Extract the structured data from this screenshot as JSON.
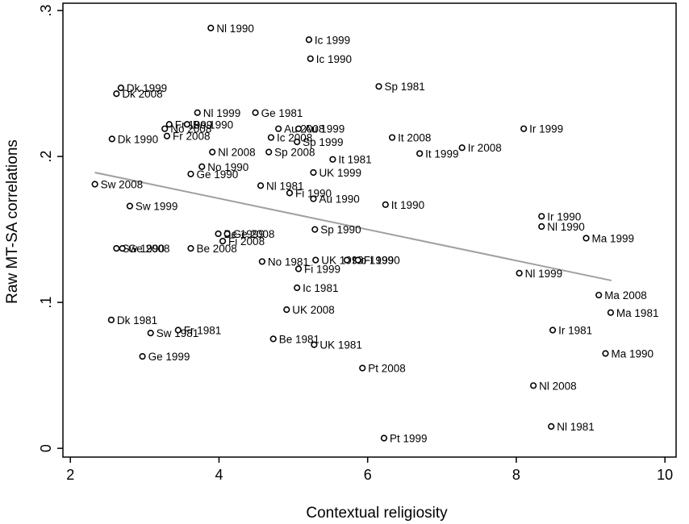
{
  "chart_data": {
    "type": "scatter",
    "xlabel": "Contextual religiosity",
    "ylabel": "Raw MT-SA correlations",
    "xlim": [
      1.9,
      10.15
    ],
    "ylim": [
      -0.006,
      0.305
    ],
    "xticks": [
      2,
      4,
      6,
      8,
      10
    ],
    "xtick_labels": [
      "2",
      "4",
      "6",
      "8",
      "10"
    ],
    "yticks": [
      0,
      0.1,
      0.2,
      0.3
    ],
    "ytick_labels": [
      "0",
      ".1",
      ".2",
      ".3"
    ],
    "grid": false,
    "legend": "none",
    "fit_line": {
      "x": [
        2.33,
        9.28
      ],
      "y": [
        0.189,
        0.115
      ],
      "color": "#a0a0a0"
    },
    "marker_color": "#000000",
    "points": [
      {
        "x": 3.89,
        "y": 0.288,
        "label": "Nl 1990"
      },
      {
        "x": 5.21,
        "y": 0.28,
        "label": "Ic 1999"
      },
      {
        "x": 5.23,
        "y": 0.267,
        "label": "Ic 1990"
      },
      {
        "x": 6.15,
        "y": 0.248,
        "label": "Sp 1981"
      },
      {
        "x": 2.68,
        "y": 0.247,
        "label": "Dk 1999"
      },
      {
        "x": 2.62,
        "y": 0.243,
        "label": "Dk 2008"
      },
      {
        "x": 3.71,
        "y": 0.23,
        "label": "Nl 1999"
      },
      {
        "x": 4.49,
        "y": 0.23,
        "label": "Ge 1981"
      },
      {
        "x": 3.33,
        "y": 0.222,
        "label": "Fr 1999"
      },
      {
        "x": 3.57,
        "y": 0.222,
        "label": "Be 1990"
      },
      {
        "x": 3.27,
        "y": 0.219,
        "label": "No 2008"
      },
      {
        "x": 4.8,
        "y": 0.219,
        "label": "Au 2008"
      },
      {
        "x": 5.07,
        "y": 0.219,
        "label": "Au 1999"
      },
      {
        "x": 8.1,
        "y": 0.219,
        "label": "Ir 1999"
      },
      {
        "x": 2.56,
        "y": 0.212,
        "label": "Dk 1990"
      },
      {
        "x": 3.3,
        "y": 0.214,
        "label": "Fr 2008"
      },
      {
        "x": 4.7,
        "y": 0.213,
        "label": "Ic 2008"
      },
      {
        "x": 5.05,
        "y": 0.21,
        "label": "Sp 1999"
      },
      {
        "x": 6.33,
        "y": 0.213,
        "label": "It 2008"
      },
      {
        "x": 7.27,
        "y": 0.206,
        "label": "Ir 2008"
      },
      {
        "x": 6.7,
        "y": 0.202,
        "label": "It 1999"
      },
      {
        "x": 3.91,
        "y": 0.203,
        "label": "Nl 2008"
      },
      {
        "x": 4.67,
        "y": 0.203,
        "label": "Sp 2008"
      },
      {
        "x": 5.53,
        "y": 0.198,
        "label": "It 1981"
      },
      {
        "x": 3.77,
        "y": 0.193,
        "label": "No 1990"
      },
      {
        "x": 3.62,
        "y": 0.188,
        "label": "Ge 1990"
      },
      {
        "x": 5.27,
        "y": 0.189,
        "label": "UK 1999"
      },
      {
        "x": 2.33,
        "y": 0.181,
        "label": "Sw 2008"
      },
      {
        "x": 4.56,
        "y": 0.18,
        "label": "Nl 1981"
      },
      {
        "x": 4.95,
        "y": 0.175,
        "label": "Fi 1990"
      },
      {
        "x": 5.27,
        "y": 0.171,
        "label": "Au 1990"
      },
      {
        "x": 6.24,
        "y": 0.167,
        "label": "It 1990"
      },
      {
        "x": 2.8,
        "y": 0.166,
        "label": "Sw 1999"
      },
      {
        "x": 8.34,
        "y": 0.159,
        "label": "Ir 1990"
      },
      {
        "x": 8.34,
        "y": 0.152,
        "label": "Nl 1990"
      },
      {
        "x": 5.29,
        "y": 0.15,
        "label": "Sp 1990"
      },
      {
        "x": 8.94,
        "y": 0.144,
        "label": "Ma 1999"
      },
      {
        "x": 3.99,
        "y": 0.147,
        "label": "Be 1999"
      },
      {
        "x": 4.11,
        "y": 0.147,
        "label": "Ge 2008"
      },
      {
        "x": 4.05,
        "y": 0.142,
        "label": "Fi 2008"
      },
      {
        "x": 2.62,
        "y": 0.137,
        "label": "Sw 1990"
      },
      {
        "x": 2.7,
        "y": 0.137,
        "label": "Ge 2008"
      },
      {
        "x": 3.62,
        "y": 0.137,
        "label": "Be 2008"
      },
      {
        "x": 4.58,
        "y": 0.128,
        "label": "No 1981"
      },
      {
        "x": 5.3,
        "y": 0.129,
        "label": "UK 1990"
      },
      {
        "x": 5.72,
        "y": 0.129,
        "label": "No 1999"
      },
      {
        "x": 5.87,
        "y": 0.129,
        "label": "Fi 1990"
      },
      {
        "x": 5.07,
        "y": 0.123,
        "label": "Fi 1999"
      },
      {
        "x": 8.04,
        "y": 0.12,
        "label": "Nl 1999"
      },
      {
        "x": 5.05,
        "y": 0.11,
        "label": "Ic 1981"
      },
      {
        "x": 9.11,
        "y": 0.105,
        "label": "Ma 2008"
      },
      {
        "x": 4.91,
        "y": 0.095,
        "label": "UK 2008"
      },
      {
        "x": 9.27,
        "y": 0.093,
        "label": "Ma 1981"
      },
      {
        "x": 2.55,
        "y": 0.088,
        "label": "Dk 1981"
      },
      {
        "x": 3.08,
        "y": 0.079,
        "label": "Sw 1981"
      },
      {
        "x": 3.45,
        "y": 0.081,
        "label": "Fr 1981"
      },
      {
        "x": 8.49,
        "y": 0.081,
        "label": "Ir 1981"
      },
      {
        "x": 4.73,
        "y": 0.075,
        "label": "Be 1981"
      },
      {
        "x": 5.28,
        "y": 0.071,
        "label": "UK 1981"
      },
      {
        "x": 9.2,
        "y": 0.065,
        "label": "Ma 1990"
      },
      {
        "x": 2.97,
        "y": 0.063,
        "label": "Ge 1999"
      },
      {
        "x": 5.93,
        "y": 0.055,
        "label": "Pt 2008"
      },
      {
        "x": 8.23,
        "y": 0.043,
        "label": "Nl 2008"
      },
      {
        "x": 8.47,
        "y": 0.015,
        "label": "Nl 1981"
      },
      {
        "x": 6.22,
        "y": 0.007,
        "label": "Pt 1999"
      }
    ]
  }
}
